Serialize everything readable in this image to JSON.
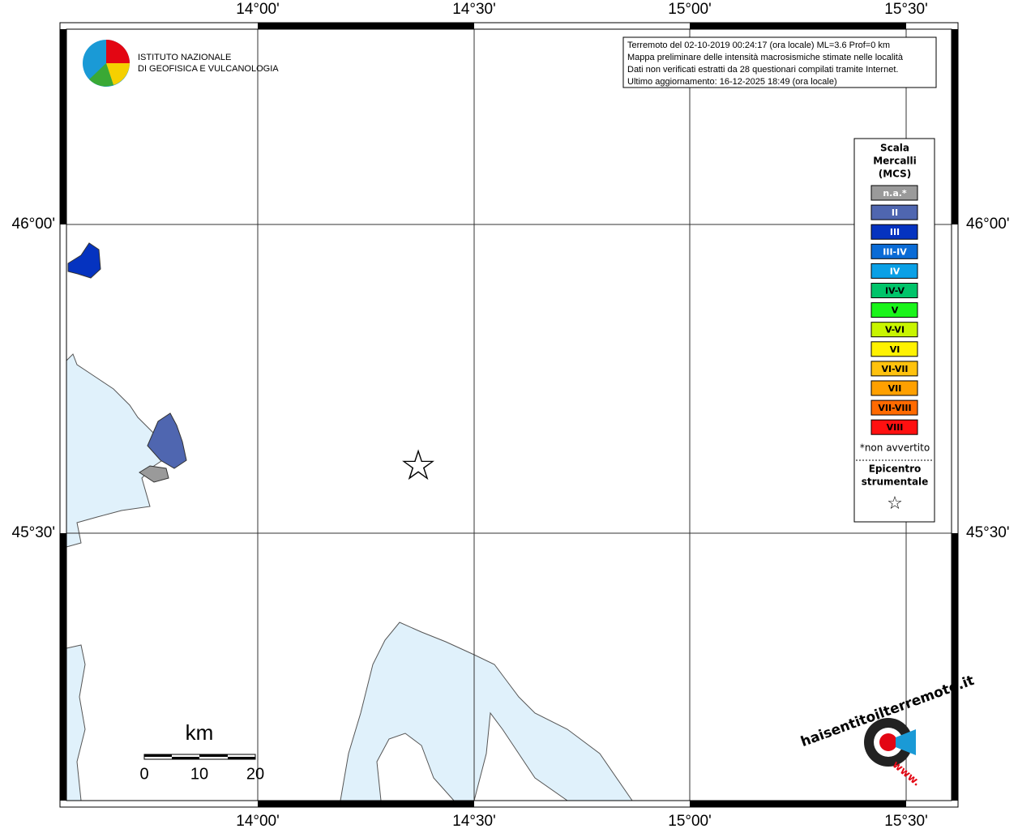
{
  "axes": {
    "top": [
      "14°00'",
      "14°30'",
      "15°00'",
      "15°30'"
    ],
    "bottom": [
      "14°00'",
      "14°30'",
      "15°00'",
      "15°30'"
    ],
    "left": [
      "46°00'",
      "45°30'"
    ],
    "right": [
      "46°00'",
      "45°30'"
    ]
  },
  "logo": {
    "line1": "ISTITUTO NAZIONALE",
    "line2": "DI GEOFISICA E VULCANOLOGIA"
  },
  "info": [
    "Terremoto del 02-10-2019 00:24:17 (ora locale) ML=3.6 Prof=0 km",
    "Mappa preliminare delle intensità macrosismiche stimate nelle località",
    "Dati non verificati estratti da 28 questionari compilati tramite Internet.",
    "Ultimo aggiornamento: 16-12-2025 18:49 (ora locale)"
  ],
  "legend": {
    "title": [
      "Scala",
      "Mercalli",
      "(MCS)"
    ],
    "items": [
      {
        "label": "n.a.*",
        "color": "#9a9a9a",
        "text": "#ffffff"
      },
      {
        "label": "II",
        "color": "#4f66b0",
        "text": "#ffffff"
      },
      {
        "label": "III",
        "color": "#0533c0",
        "text": "#ffffff"
      },
      {
        "label": "III-IV",
        "color": "#0a6bd6",
        "text": "#ffffff"
      },
      {
        "label": "IV",
        "color": "#0aa0e6",
        "text": "#ffffff"
      },
      {
        "label": "IV-V",
        "color": "#00c46a",
        "text": "#000000"
      },
      {
        "label": "V",
        "color": "#1af51a",
        "text": "#000000"
      },
      {
        "label": "V-VI",
        "color": "#c8f500",
        "text": "#000000"
      },
      {
        "label": "VI",
        "color": "#fff200",
        "text": "#000000"
      },
      {
        "label": "VI-VII",
        "color": "#ffc20e",
        "text": "#000000"
      },
      {
        "label": "VII",
        "color": "#ffa000",
        "text": "#000000"
      },
      {
        "label": "VII-VIII",
        "color": "#ff6a00",
        "text": "#000000"
      },
      {
        "label": "VIII",
        "color": "#ff1010",
        "text": "#000000"
      }
    ],
    "note": "*non avvertito",
    "epicenter": [
      "Epicentro",
      "strumentale"
    ]
  },
  "scale_bar": {
    "unit": "km",
    "labels": [
      "0",
      "10",
      "20"
    ]
  },
  "brand": {
    "text": "haisentitoilterremoto.it",
    "prefix": "www."
  }
}
